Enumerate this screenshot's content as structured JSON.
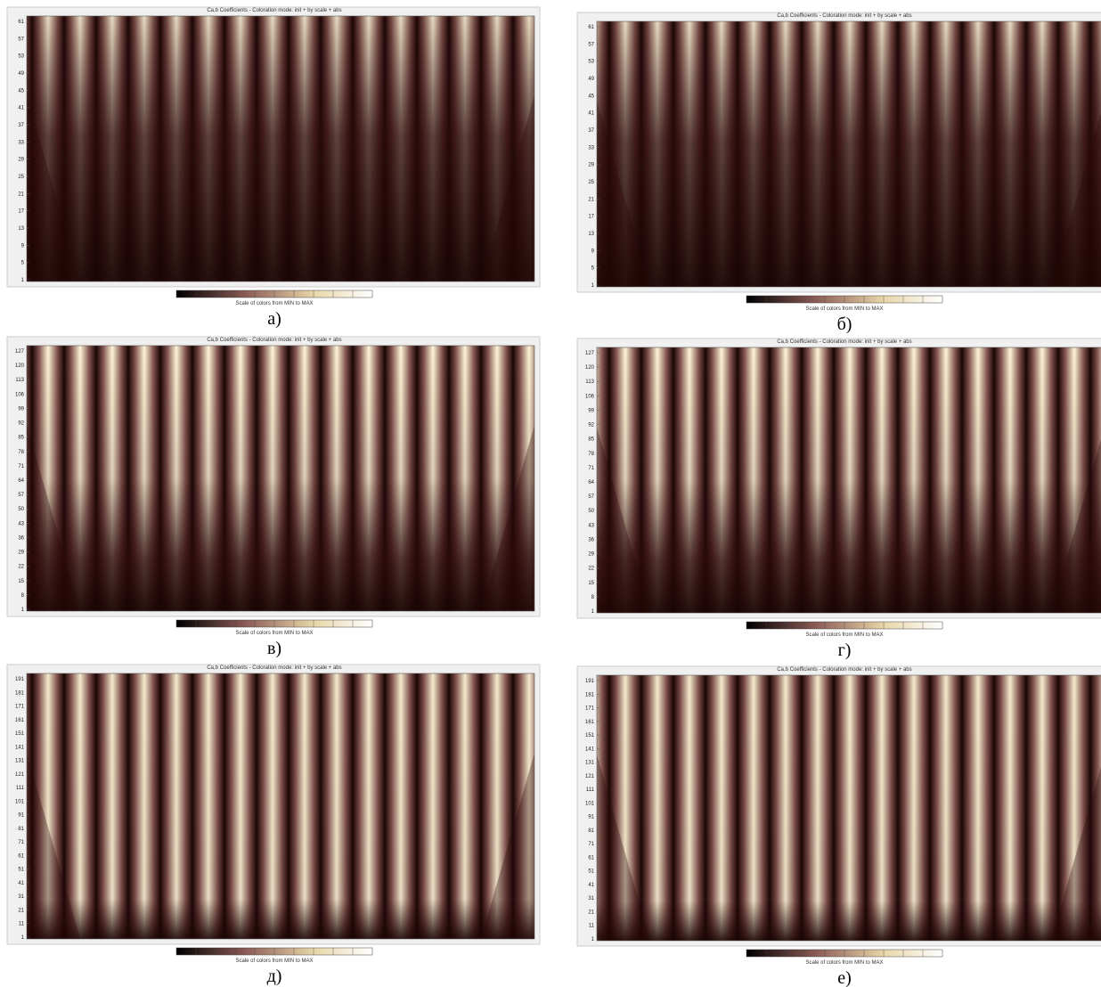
{
  "panels": [
    {
      "title": "Ca,b Coefficients - Coloration mode: init + by scale + abs",
      "yticks": [
        1,
        5,
        9,
        13,
        17,
        21,
        25,
        29,
        33,
        37,
        41,
        45,
        49,
        53,
        57,
        61
      ],
      "colorbar_label": "Scale of colors from MIN to MAX",
      "caption": "а)"
    },
    {
      "title": "Ca,b Coefficients - Coloration mode: init + by scale + abs",
      "yticks": [
        1,
        5,
        9,
        13,
        17,
        21,
        25,
        29,
        33,
        37,
        41,
        45,
        49,
        53,
        57,
        61
      ],
      "colorbar_label": "Scale of colors from MIN to MAX",
      "caption": "б)"
    },
    {
      "title": "Ca,b Coefficients - Coloration mode: init + by scale + abs",
      "yticks": [
        1,
        8,
        15,
        22,
        29,
        36,
        43,
        50,
        57,
        64,
        71,
        78,
        85,
        92,
        99,
        106,
        113,
        120,
        127
      ],
      "colorbar_label": "Scale of colors from MIN to MAX",
      "caption": "в)"
    },
    {
      "title": "Ca,b Coefficients - Coloration mode: init + by scale + abs",
      "yticks": [
        1,
        8,
        15,
        22,
        29,
        36,
        43,
        50,
        57,
        64,
        71,
        78,
        85,
        92,
        99,
        106,
        113,
        120,
        127
      ],
      "colorbar_label": "Scale of colors from MIN to MAX",
      "caption": "г)"
    },
    {
      "title": "Ca,b Coefficients - Coloration mode: init + by scale + abs",
      "yticks": [
        1,
        11,
        21,
        31,
        41,
        51,
        61,
        71,
        81,
        91,
        101,
        111,
        121,
        131,
        141,
        151,
        161,
        171,
        181,
        191
      ],
      "colorbar_label": "Scale of colors from MIN to MAX",
      "caption": "д)"
    },
    {
      "title": "Ca,b Coefficients - Coloration mode: init + by scale + abs",
      "yticks": [
        1,
        11,
        21,
        31,
        41,
        51,
        61,
        71,
        81,
        91,
        101,
        111,
        121,
        131,
        141,
        151,
        161,
        171,
        181,
        191
      ],
      "colorbar_label": "Scale of colors from MIN to MAX",
      "caption": "е)"
    }
  ]
}
